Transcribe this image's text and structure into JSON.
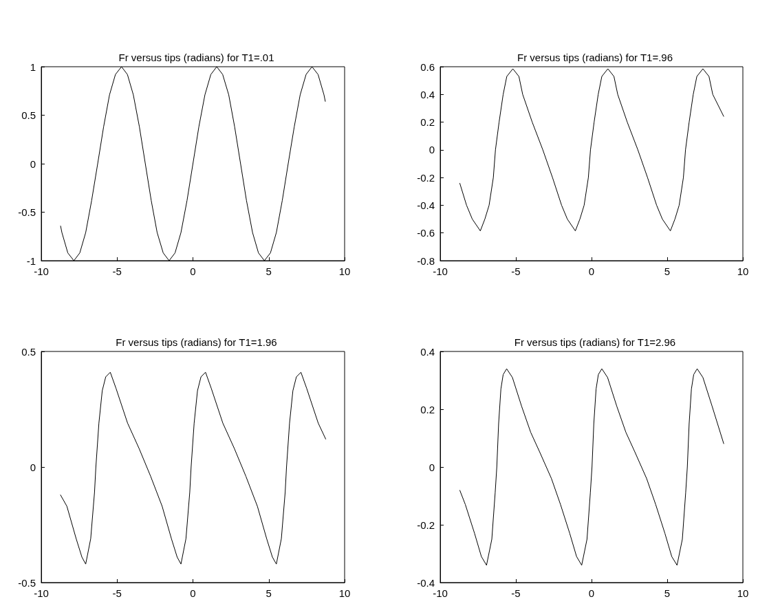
{
  "chart_data": [
    {
      "type": "line",
      "title": "Fr versus tips (radians) for T1=.01",
      "color": "#000000",
      "xlim": [
        -10,
        10
      ],
      "xticks": [
        -10,
        -5,
        0,
        5,
        10
      ],
      "ylim": [
        -1,
        1
      ],
      "yticks": [
        -1,
        -0.5,
        0,
        0.5,
        1
      ],
      "x": [
        -8.73,
        -8.64,
        -8.25,
        -7.85,
        -7.46,
        -7.07,
        -6.68,
        -6.28,
        -5.89,
        -5.5,
        -5.11,
        -4.71,
        -4.32,
        -3.93,
        -3.53,
        -3.14,
        -2.75,
        -2.36,
        -1.96,
        -1.57,
        -1.18,
        -0.79,
        -0.39,
        0,
        0.39,
        0.79,
        1.18,
        1.57,
        1.96,
        2.36,
        2.75,
        3.14,
        3.53,
        3.93,
        4.32,
        4.71,
        5.11,
        5.5,
        5.89,
        6.28,
        6.68,
        7.07,
        7.46,
        7.85,
        8.25,
        8.64,
        8.73
      ],
      "values": [
        -0.64,
        -0.71,
        -0.92,
        -1,
        -0.92,
        -0.71,
        -0.38,
        0,
        0.38,
        0.71,
        0.92,
        1,
        0.92,
        0.71,
        0.38,
        0,
        -0.38,
        -0.71,
        -0.92,
        -1,
        -0.92,
        -0.71,
        -0.38,
        0,
        0.38,
        0.71,
        0.92,
        1,
        0.92,
        0.71,
        0.38,
        0,
        -0.38,
        -0.71,
        -0.92,
        -1,
        -0.92,
        -0.71,
        -0.38,
        0,
        0.38,
        0.71,
        0.92,
        1,
        0.92,
        0.71,
        0.64
      ]
    },
    {
      "type": "line",
      "title": "Fr versus tips (radians) for T1=.96",
      "color": "#000000",
      "xlim": [
        -10,
        10
      ],
      "xticks": [
        -10,
        -5,
        0,
        5,
        10
      ],
      "ylim": [
        -0.8,
        0.6
      ],
      "yticks": [
        -0.8,
        -0.6,
        -0.4,
        -0.2,
        0,
        0.2,
        0.4,
        0.6
      ],
      "x": [
        -8.71,
        -8.26,
        -7.88,
        -7.35,
        -7.05,
        -6.77,
        -6.49,
        -6.35,
        -6.11,
        -5.84,
        -5.6,
        -5.2,
        -4.8,
        -4.55,
        -3.92,
        -3.22,
        -2.58,
        -1.98,
        -1.6,
        -1.07,
        -0.77,
        -0.49,
        -0.21,
        -0.07,
        0.17,
        0.44,
        0.68,
        1.08,
        1.48,
        1.73,
        2.36,
        3.06,
        3.7,
        4.3,
        4.68,
        5.21,
        5.51,
        5.79,
        6.07,
        6.21,
        6.45,
        6.72,
        6.96,
        7.36,
        7.76,
        8.01,
        8.74
      ],
      "values": [
        -0.24,
        -0.4,
        -0.5,
        -0.585,
        -0.5,
        -0.4,
        -0.2,
        0,
        0.2,
        0.4,
        0.53,
        0.585,
        0.53,
        0.4,
        0.2,
        0,
        -0.2,
        -0.4,
        -0.5,
        -0.585,
        -0.5,
        -0.4,
        -0.2,
        0,
        0.2,
        0.4,
        0.53,
        0.585,
        0.53,
        0.4,
        0.2,
        0,
        -0.2,
        -0.4,
        -0.5,
        -0.585,
        -0.5,
        -0.4,
        -0.2,
        0,
        0.2,
        0.4,
        0.53,
        0.585,
        0.53,
        0.4,
        0.24
      ]
    },
    {
      "type": "line",
      "title": "Fr versus tips (radians) for T1=1.96",
      "color": "#000000",
      "xlim": [
        -10,
        10
      ],
      "xticks": [
        -10,
        -5,
        0,
        5,
        10
      ],
      "ylim": [
        -0.5,
        0.5
      ],
      "yticks": [
        -0.5,
        0,
        0.5
      ],
      "x": [
        -8.74,
        -8.31,
        -7.7,
        -7.32,
        -7.07,
        -6.74,
        -6.49,
        -6.4,
        -6.2,
        -5.98,
        -5.75,
        -5.45,
        -5.07,
        -4.31,
        -3.55,
        -2.79,
        -2.03,
        -1.42,
        -1.04,
        -0.79,
        -0.46,
        -0.21,
        -0.12,
        0.08,
        0.3,
        0.53,
        0.83,
        1.21,
        1.97,
        2.73,
        3.49,
        4.25,
        4.86,
        5.24,
        5.5,
        5.83,
        6.08,
        6.17,
        6.37,
        6.59,
        6.82,
        7.12,
        7.5,
        8.26,
        8.76
      ],
      "values": [
        -0.12,
        -0.17,
        -0.31,
        -0.39,
        -0.42,
        -0.31,
        -0.11,
        0,
        0.19,
        0.33,
        0.39,
        0.41,
        0.34,
        0.19,
        0.08,
        -0.04,
        -0.17,
        -0.31,
        -0.39,
        -0.42,
        -0.31,
        -0.11,
        0,
        0.19,
        0.33,
        0.39,
        0.41,
        0.34,
        0.19,
        0.08,
        -0.04,
        -0.17,
        -0.31,
        -0.39,
        -0.42,
        -0.31,
        -0.11,
        0,
        0.19,
        0.33,
        0.39,
        0.41,
        0.34,
        0.19,
        0.12
      ]
    },
    {
      "type": "line",
      "title": "Fr versus tips (radians) for T1=2.96",
      "color": "#000000",
      "xlim": [
        -10,
        10
      ],
      "xticks": [
        -10,
        -5,
        0,
        5,
        10
      ],
      "ylim": [
        -0.4,
        0.4
      ],
      "yticks": [
        -0.4,
        -0.2,
        0,
        0.2,
        0.4
      ],
      "x": [
        -8.71,
        -8.34,
        -7.73,
        -7.28,
        -6.94,
        -6.59,
        -6.37,
        -6.26,
        -6.14,
        -5.99,
        -5.84,
        -5.61,
        -5.23,
        -4.62,
        -4.02,
        -3.41,
        -2.65,
        -2.05,
        -1.44,
        -0.99,
        -0.65,
        -0.3,
        -0.08,
        0.03,
        0.15,
        0.3,
        0.45,
        0.68,
        1.06,
        1.67,
        2.27,
        2.88,
        3.64,
        4.24,
        4.85,
        5.3,
        5.65,
        6,
        6.22,
        6.33,
        6.45,
        6.6,
        6.75,
        6.98,
        7.36,
        7.97,
        8.74
      ],
      "values": [
        -0.08,
        -0.13,
        -0.23,
        -0.31,
        -0.34,
        -0.25,
        -0.09,
        0,
        0.15,
        0.27,
        0.32,
        0.34,
        0.31,
        0.21,
        0.12,
        0.05,
        -0.04,
        -0.13,
        -0.23,
        -0.31,
        -0.34,
        -0.25,
        -0.09,
        0,
        0.15,
        0.27,
        0.32,
        0.34,
        0.31,
        0.21,
        0.12,
        0.05,
        -0.04,
        -0.13,
        -0.23,
        -0.31,
        -0.34,
        -0.25,
        -0.09,
        0,
        0.15,
        0.27,
        0.32,
        0.34,
        0.31,
        0.21,
        0.08
      ]
    }
  ]
}
